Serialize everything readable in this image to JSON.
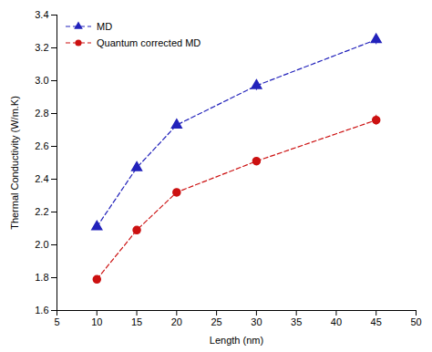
{
  "chart_data": {
    "type": "line",
    "xlabel": "Length (nm)",
    "ylabel": "Thermal Conductivity (W/m.K)",
    "x": [
      10,
      15,
      20,
      30,
      45
    ],
    "series": [
      {
        "name": "MD",
        "color": "#2222bb",
        "marker": "triangle",
        "line_style": "dashed",
        "values": [
          2.11,
          2.47,
          2.73,
          2.97,
          3.25
        ],
        "errors": [
          0.02,
          0.02,
          0.02,
          0.03,
          0.03
        ]
      },
      {
        "name": "Quantum corrected MD",
        "color": "#cc1111",
        "marker": "circle",
        "line_style": "dashed",
        "values": [
          1.79,
          2.09,
          2.32,
          2.51,
          2.76
        ],
        "errors": [
          0.02,
          0.02,
          0.02,
          0.02,
          0.03
        ]
      }
    ],
    "xlim": [
      5,
      50
    ],
    "ylim": [
      1.6,
      3.4
    ],
    "xticks": [
      5,
      10,
      15,
      20,
      25,
      30,
      35,
      40,
      45,
      50
    ],
    "yticks": [
      1.6,
      1.8,
      {
        "value": 2.0,
        "label": "2.0"
      },
      2.2,
      2.4,
      2.6,
      2.8,
      {
        "value": 3.0,
        "label": "3.0"
      },
      3.2,
      3.4
    ],
    "grid": false,
    "legend": "upper left"
  }
}
